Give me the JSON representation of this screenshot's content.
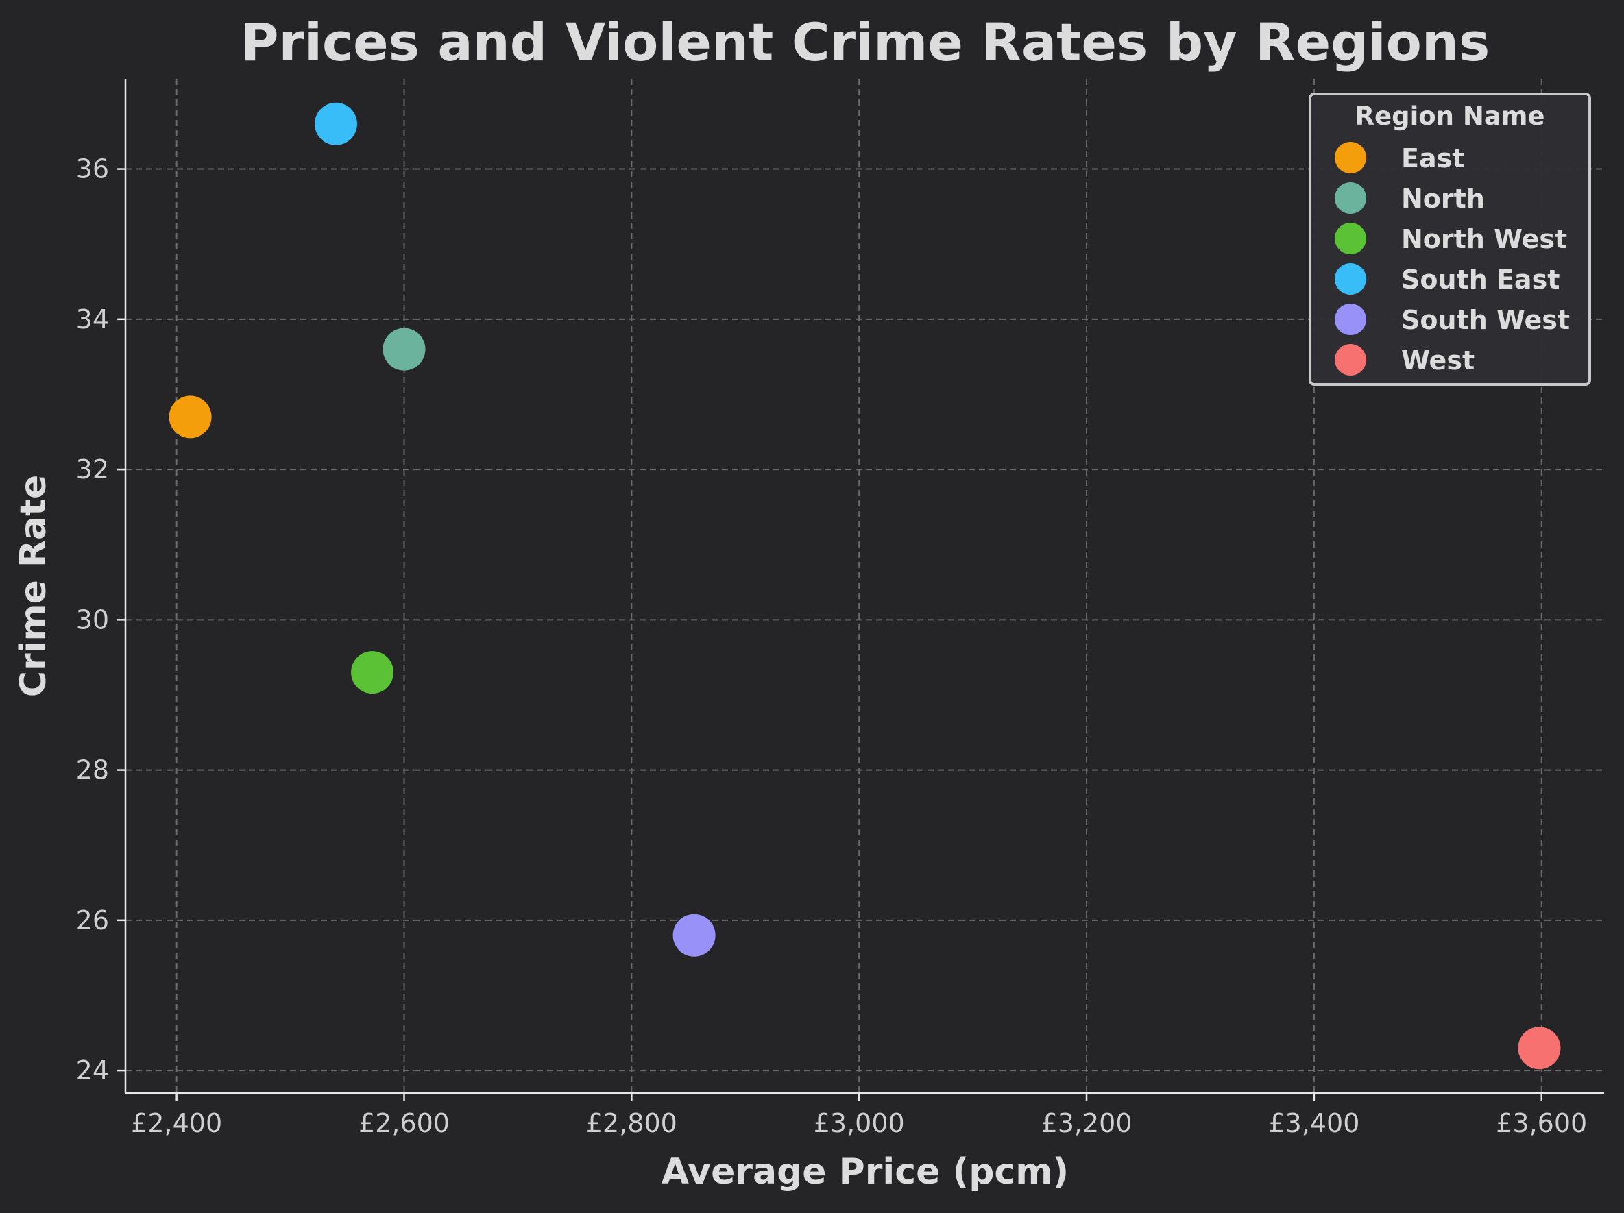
{
  "chart_data": {
    "type": "scatter",
    "title": "Prices and Violent Crime Rates by Regions",
    "xlabel": "Average Price (pcm)",
    "ylabel": "Crime Rate",
    "xlim": [
      2355,
      3655
    ],
    "ylim": [
      23.7,
      37.2
    ],
    "x_ticks": [
      2400,
      2600,
      2800,
      3000,
      3200,
      3400,
      3600
    ],
    "x_tick_labels": [
      "£2,400",
      "£2,600",
      "£2,800",
      "£3,000",
      "£3,200",
      "£3,400",
      "£3,600"
    ],
    "y_ticks": [
      24,
      26,
      28,
      30,
      32,
      34,
      36
    ],
    "y_tick_labels": [
      "24",
      "26",
      "28",
      "30",
      "32",
      "34",
      "36"
    ],
    "grid": true,
    "legend": {
      "title": "Region Name",
      "placement": "top-right"
    },
    "series": [
      {
        "name": "East",
        "color": "#f59e0b",
        "x": 2412,
        "y": 32.7
      },
      {
        "name": "North",
        "color": "#6bb39c",
        "x": 2600,
        "y": 33.6
      },
      {
        "name": "North West",
        "color": "#5bc236",
        "x": 2572,
        "y": 29.3
      },
      {
        "name": "South East",
        "color": "#38bdf8",
        "x": 2540,
        "y": 36.6
      },
      {
        "name": "South West",
        "color": "#9891f8",
        "x": 2855,
        "y": 25.8
      },
      {
        "name": "West",
        "color": "#f87171",
        "x": 3598,
        "y": 24.3
      }
    ]
  }
}
